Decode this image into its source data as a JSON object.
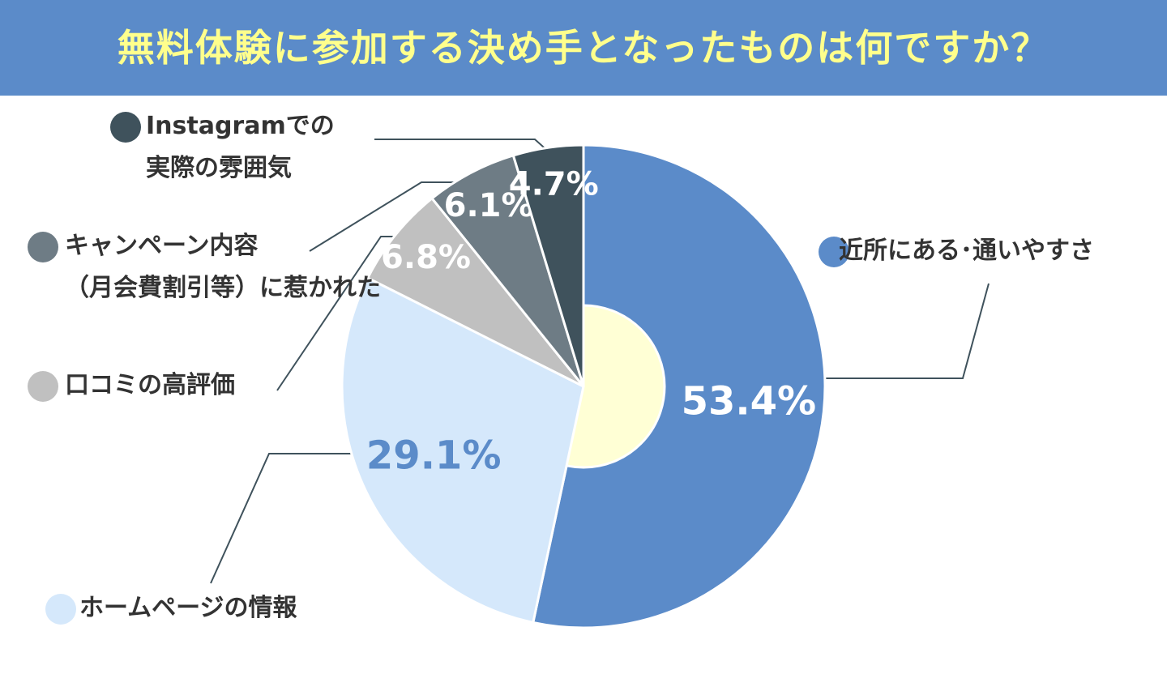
{
  "chart_data": {
    "type": "donut",
    "title": "無料体験に参加する決め手となったものは何ですか？",
    "series": [
      {
        "name": "近所にある･通いやすさ",
        "color": "#5b8bc9",
        "values": [
          53.4
        ],
        "value_labels": [
          "53.4%"
        ],
        "label_color": "#ffffff"
      },
      {
        "name": "ホームページの情報",
        "color": "#d5e8fb",
        "values": [
          29.1
        ],
        "value_labels": [
          "29.1%"
        ],
        "label_color": "#5b8bc9"
      },
      {
        "name": "口コミの高評価",
        "color": "#c0c0c0",
        "values": [
          6.8
        ],
        "value_labels": [
          "6.8%"
        ],
        "label_color": "#ffffff"
      },
      {
        "name": "キャンペーン内容\n（月会費割引等）に惹かれた",
        "color": "#6e7c85",
        "values": [
          6.1
        ],
        "value_labels": [
          "6.1%"
        ],
        "label_color": "#ffffff"
      },
      {
        "name": "Instagramでの\n実際の雰囲気",
        "color": "#3f525c",
        "values": [
          4.7
        ],
        "value_labels": [
          "4.7%"
        ],
        "label_color": "#ffffff"
      }
    ]
  }
}
